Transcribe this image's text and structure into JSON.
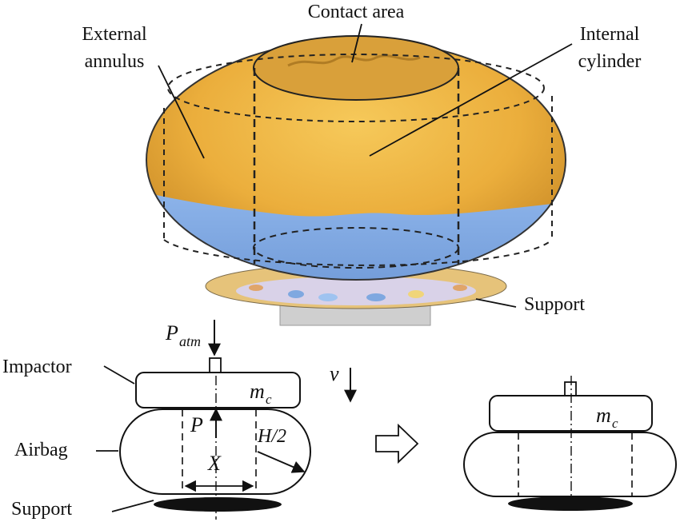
{
  "labels": {
    "contact_area": "Contact area",
    "external_annulus_line1": "External",
    "external_annulus_line2": "annulus",
    "internal_cylinder_line1": "Internal",
    "internal_cylinder_line2": "cylinder",
    "support_top": "Support",
    "impactor": "Impactor",
    "airbag": "Airbag",
    "support_bottom": "Support"
  },
  "symbols": {
    "p_atm_main": "P",
    "p_atm_sub": "atm",
    "velocity": "v",
    "mass_main": "m",
    "mass_sub": "c",
    "pressure": "P",
    "half_height": "H/2",
    "x_width": "X",
    "mass2_main": "m",
    "mass2_sub": "c"
  },
  "colors": {
    "airbag_top": "#E9A93A",
    "airbag_mid": "#F1BE4C",
    "airbag_bottom": "#7FA8E0",
    "support_base": "#C9C9C9",
    "line": "#111111"
  }
}
